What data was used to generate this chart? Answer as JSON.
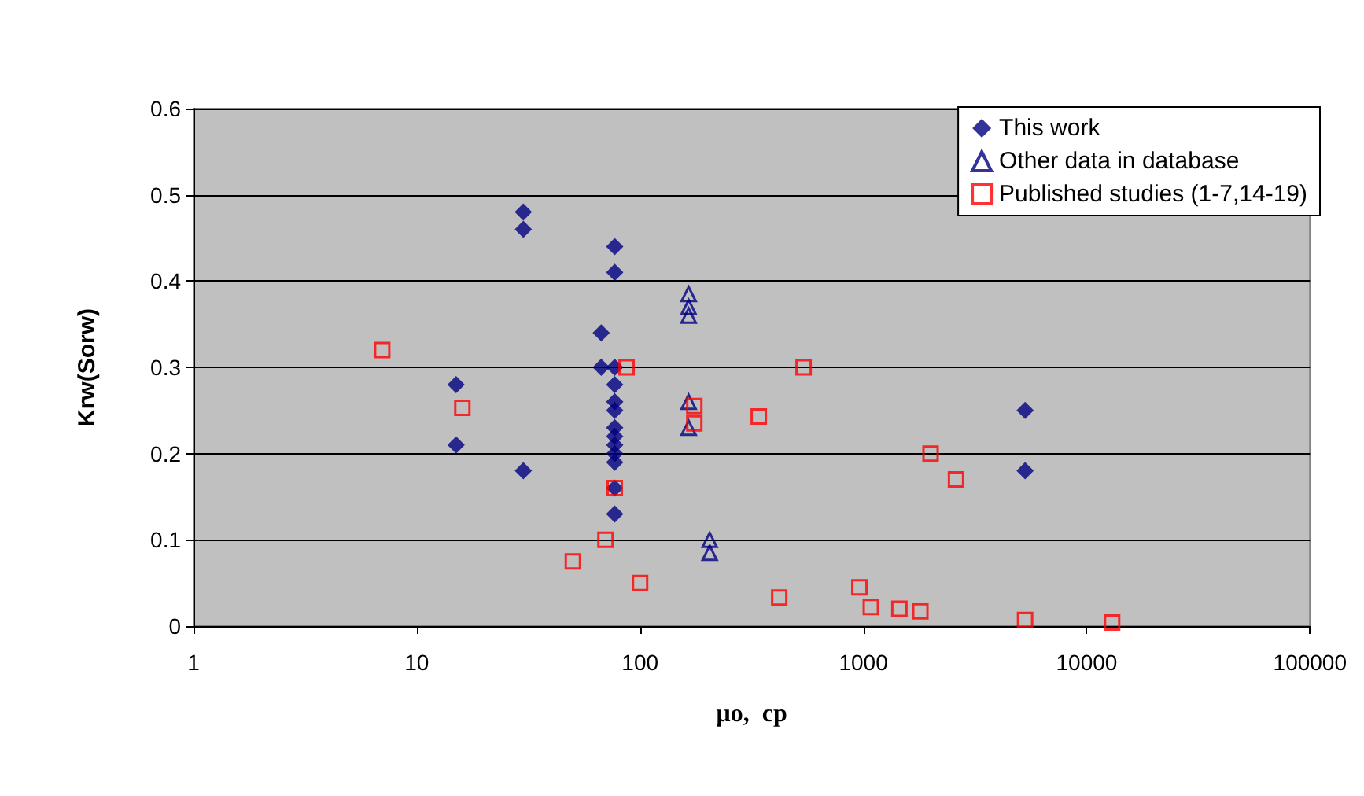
{
  "chart_data": {
    "type": "scatter",
    "xlabel": "μo,  cp",
    "ylabel": "Krw(Sorw)",
    "log": "x",
    "xlim": [
      1,
      100000
    ],
    "xticks": [
      1,
      10,
      100,
      1000,
      10000,
      100000
    ],
    "ylim": [
      0,
      0.6
    ],
    "yticks": [
      0,
      0.1,
      0.2,
      0.3,
      0.4,
      0.5,
      0.6
    ],
    "grid": "y",
    "legend": "top right",
    "series": [
      {
        "name": "This work",
        "color": "#000080",
        "marker": "diamond",
        "x": [
          15,
          15,
          30,
          30,
          30,
          77,
          77,
          67,
          67,
          77,
          77,
          77,
          77,
          77,
          77,
          77,
          77,
          77,
          77,
          77,
          5300,
          5300
        ],
        "values": [
          0.28,
          0.21,
          0.48,
          0.46,
          0.18,
          0.44,
          0.41,
          0.34,
          0.3,
          0.3,
          0.28,
          0.26,
          0.25,
          0.23,
          0.22,
          0.21,
          0.2,
          0.19,
          0.16,
          0.13,
          0.25,
          0.18
        ]
      },
      {
        "name": "Other data in database",
        "color": "#000080",
        "marker": "triangle",
        "x": [
          165,
          165,
          165,
          165,
          165,
          205,
          205
        ],
        "values": [
          0.385,
          0.37,
          0.36,
          0.26,
          0.23,
          0.1,
          0.085
        ]
      },
      {
        "name": "Published studies (1-7,14-19)",
        "color": "#ff0000",
        "marker": "square",
        "x": [
          7,
          16,
          50,
          70,
          77,
          87,
          100,
          175,
          175,
          340,
          420,
          540,
          960,
          1080,
          1450,
          1800,
          2000,
          2600,
          5300,
          13000
        ],
        "values": [
          0.32,
          0.253,
          0.075,
          0.1,
          0.16,
          0.3,
          0.05,
          0.255,
          0.235,
          0.243,
          0.033,
          0.3,
          0.045,
          0.022,
          0.02,
          0.017,
          0.2,
          0.17,
          0.007,
          0.004
        ]
      }
    ]
  }
}
